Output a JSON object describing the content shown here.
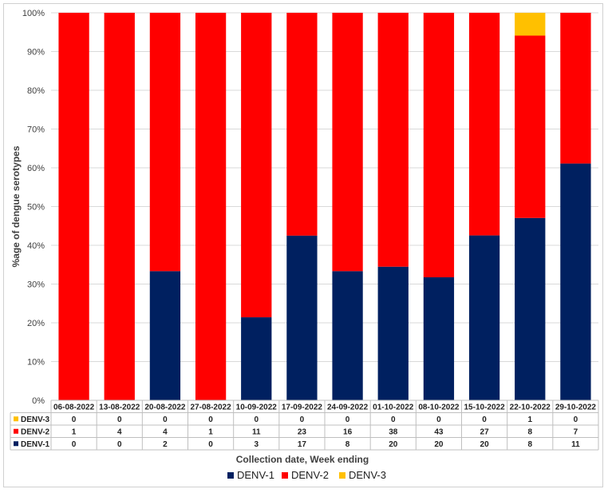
{
  "chart_data": {
    "type": "bar",
    "stacked": "percent",
    "title": "",
    "xlabel": "Collection date, Week ending",
    "ylabel": "%age of dengue serotypes",
    "ylim": [
      0,
      100
    ],
    "yticks": [
      "0%",
      "10%",
      "20%",
      "30%",
      "40%",
      "50%",
      "60%",
      "70%",
      "80%",
      "90%",
      "100%"
    ],
    "categories": [
      "06-08-2022",
      "13-08-2022",
      "20-08-2022",
      "27-08-2022",
      "10-09-2022",
      "17-09-2022",
      "24-09-2022",
      "01-10-2022",
      "08-10-2022",
      "15-10-2022",
      "22-10-2022",
      "29-10-2022"
    ],
    "series": [
      {
        "name": "DENV-1",
        "color": "#002060",
        "values": [
          0,
          0,
          2,
          0,
          3,
          17,
          8,
          20,
          20,
          20,
          8,
          11
        ]
      },
      {
        "name": "DENV-2",
        "color": "#ff0000",
        "values": [
          1,
          4,
          4,
          1,
          11,
          23,
          16,
          38,
          43,
          27,
          8,
          7
        ]
      },
      {
        "name": "DENV-3",
        "color": "#ffc000",
        "values": [
          0,
          0,
          0,
          0,
          0,
          0,
          0,
          0,
          0,
          0,
          1,
          0
        ]
      }
    ],
    "table_row_order": [
      "DENV-3",
      "DENV-2",
      "DENV-1"
    ],
    "legend": [
      "DENV-1",
      "DENV-2",
      "DENV-3"
    ],
    "legend_position": "bottom"
  }
}
